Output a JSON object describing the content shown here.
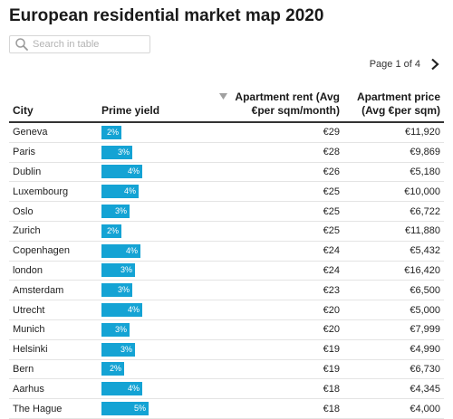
{
  "title": "European residential market map 2020",
  "search": {
    "placeholder": "Search in table",
    "value": ""
  },
  "pagination": {
    "label": "Page 1 of 4"
  },
  "columns": {
    "city": "City",
    "yield": "Prime yield",
    "rent_line1": "Apartment rent (Avg",
    "rent_line2": "€per sqm/month)",
    "price_line1": "Apartment price",
    "price_line2": "(Avg €per sqm)"
  },
  "colors": {
    "bar": "#14a3d4",
    "header_rule": "#333333"
  },
  "rows": [
    {
      "city": "Geneva",
      "yield": "2%",
      "yield_value": 2.0,
      "rent": "€29",
      "price": "€11,920"
    },
    {
      "city": "Paris",
      "yield": "3%",
      "yield_value": 3.0,
      "rent": "€28",
      "price": "€9,869"
    },
    {
      "city": "Dublin",
      "yield": "4%",
      "yield_value": 4.0,
      "rent": "€26",
      "price": "€5,180"
    },
    {
      "city": "Luxembourg",
      "yield": "4%",
      "yield_value": 3.7,
      "rent": "€25",
      "price": "€10,000"
    },
    {
      "city": "Oslo",
      "yield": "3%",
      "yield_value": 2.8,
      "rent": "€25",
      "price": "€6,722"
    },
    {
      "city": "Zurich",
      "yield": "2%",
      "yield_value": 2.0,
      "rent": "€25",
      "price": "€11,880"
    },
    {
      "city": "Copenhagen",
      "yield": "4%",
      "yield_value": 3.8,
      "rent": "€24",
      "price": "€5,432"
    },
    {
      "city": "london",
      "yield": "3%",
      "yield_value": 3.3,
      "rent": "€24",
      "price": "€16,420"
    },
    {
      "city": "Amsterdam",
      "yield": "3%",
      "yield_value": 3.0,
      "rent": "€23",
      "price": "€6,500"
    },
    {
      "city": "Utrecht",
      "yield": "4%",
      "yield_value": 4.0,
      "rent": "€20",
      "price": "€5,000"
    },
    {
      "city": "Munich",
      "yield": "3%",
      "yield_value": 2.8,
      "rent": "€20",
      "price": "€7,999"
    },
    {
      "city": "Helsinki",
      "yield": "3%",
      "yield_value": 3.3,
      "rent": "€19",
      "price": "€4,990"
    },
    {
      "city": "Bern",
      "yield": "2%",
      "yield_value": 2.2,
      "rent": "€19",
      "price": "€6,730"
    },
    {
      "city": "Aarhus",
      "yield": "4%",
      "yield_value": 4.0,
      "rent": "€18",
      "price": "€4,345"
    },
    {
      "city": "The Hague",
      "yield": "5%",
      "yield_value": 4.6,
      "rent": "€18",
      "price": "€4,000"
    }
  ]
}
